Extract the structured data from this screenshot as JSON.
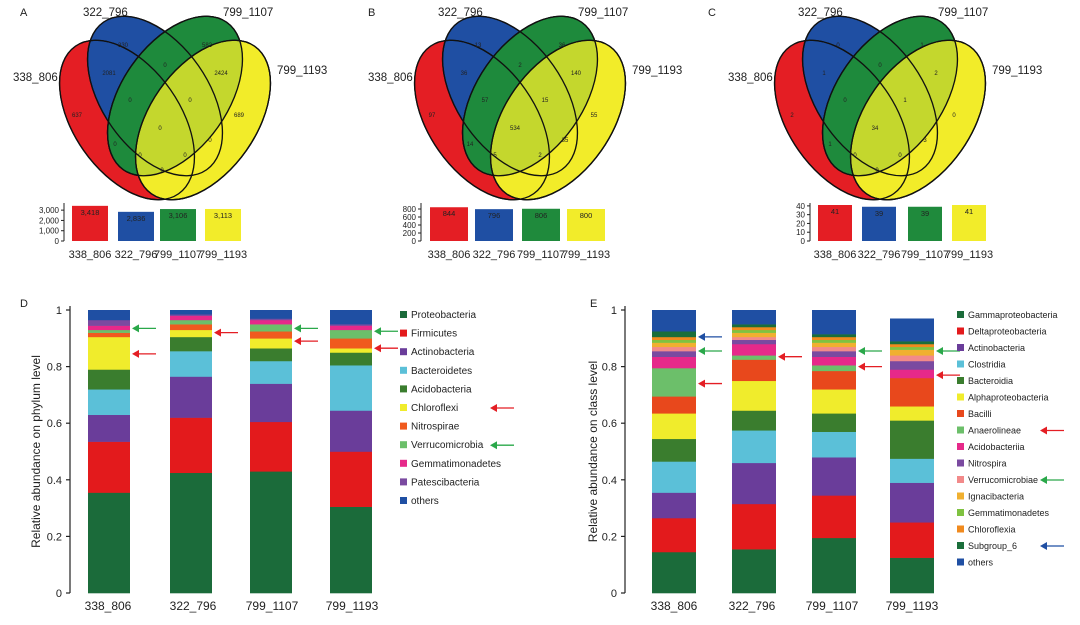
{
  "groups": [
    "338_806",
    "322_796",
    "799_1107",
    "799_1193"
  ],
  "colors": {
    "set_338_806": "#e41e24",
    "set_322_796": "#1f4fa3",
    "set_799_1107": "#1f8a3c",
    "set_799_1193": "#f2ec2a",
    "green_arrow": "#2aa84a",
    "red_arrow": "#e41e24",
    "blue_arrow": "#1f4fa3"
  },
  "panel_letters": {
    "a": "A",
    "b": "B",
    "c": "C",
    "d": "D",
    "e": "E"
  },
  "chart_data": [
    {
      "panel": "A",
      "type": "venn",
      "sets": [
        "338_806",
        "322_796",
        "799_1107",
        "799_1193"
      ],
      "regions": {
        "only_322_796": "330",
        "only_799_1107": "582",
        "322_796_and_338_806": "2081",
        "center_top": "0",
        "799_1107_and_799_1193": "2424",
        "only_338_806": "637",
        "left_inner": "0",
        "right_inner": "0",
        "only_799_1193": "689",
        "center": "0",
        "left_low": "0",
        "right_low": "0",
        "bottom_left": "0",
        "bottom_right": "0",
        "bottom": "0"
      }
    },
    {
      "panel": "A",
      "type": "bar",
      "categories": [
        "338_806",
        "322_796",
        "799_1107",
        "799_1193"
      ],
      "values": [
        3418,
        2836,
        3106,
        3113
      ],
      "value_labels": [
        "3,418",
        "2,836",
        "3,106",
        "3,113"
      ],
      "yticks": [
        "3,000",
        "2,000",
        "1,000",
        "0"
      ],
      "ylim": [
        0,
        3500
      ]
    },
    {
      "panel": "B",
      "type": "venn",
      "sets": [
        "338_806",
        "322_796",
        "799_1107",
        "799_1193"
      ],
      "regions": {
        "only_322_796": "13",
        "only_799_1107": "36",
        "322_796_and_338_806": "36",
        "center_top": "2",
        "799_1107_and_799_1193": "140",
        "only_338_806": "97",
        "left_inner": "57",
        "right_inner": "15",
        "only_799_1193": "55",
        "center": "534",
        "left_low": "14",
        "right_low": "35",
        "bottom_left": "5",
        "bottom_right": "2",
        "bottom": ""
      }
    },
    {
      "panel": "B",
      "type": "bar",
      "categories": [
        "338_806",
        "322_796",
        "799_1107",
        "799_1193"
      ],
      "values": [
        844,
        796,
        806,
        800
      ],
      "value_labels": [
        "844",
        "796",
        "806",
        "800"
      ],
      "yticks": [
        "800",
        "600",
        "400",
        "200",
        "0"
      ],
      "ylim": [
        0,
        900
      ]
    },
    {
      "panel": "C",
      "type": "venn",
      "sets": [
        "338_806",
        "322_796",
        "799_1107",
        "799_1193"
      ],
      "regions": {
        "only_322_796": "0",
        "only_799_1107": "1",
        "322_796_and_338_806": "1",
        "center_top": "0",
        "799_1107_and_799_1193": "2",
        "only_338_806": "2",
        "left_inner": "0",
        "right_inner": "1",
        "only_799_1193": "0",
        "center": "34",
        "left_low": "1",
        "right_low": "3",
        "bottom_left": "0",
        "bottom_right": "0",
        "bottom": "0"
      }
    },
    {
      "panel": "C",
      "type": "bar",
      "categories": [
        "338_806",
        "322_796",
        "799_1107",
        "799_1193"
      ],
      "values": [
        41,
        39,
        39,
        41
      ],
      "value_labels": [
        "41",
        "39",
        "39",
        "41"
      ],
      "yticks": [
        "40",
        "30",
        "20",
        "10",
        "0"
      ],
      "ylim": [
        0,
        41
      ]
    },
    {
      "panel": "D",
      "type": "stacked_bar",
      "ylabel": "Relative abundance on phylum level",
      "categories": [
        "338_806",
        "322_796",
        "799_1107",
        "799_1193"
      ],
      "yticks": [
        "0",
        "0.2",
        "0.4",
        "0.6",
        "0.8",
        "1"
      ],
      "ylim": [
        0,
        1
      ],
      "series": [
        {
          "name": "Proteobacteria",
          "color": "#1b6b3a",
          "values": [
            0.355,
            0.425,
            0.43,
            0.305
          ]
        },
        {
          "name": "Firmicutes",
          "color": "#e31a1c",
          "values": [
            0.18,
            0.195,
            0.175,
            0.195
          ]
        },
        {
          "name": "Actinobacteria",
          "color": "#6a3d9a",
          "values": [
            0.095,
            0.145,
            0.135,
            0.145
          ]
        },
        {
          "name": "Bacteroidetes",
          "color": "#5bc0d8",
          "values": [
            0.09,
            0.09,
            0.08,
            0.16
          ]
        },
        {
          "name": "Acidobacteria",
          "color": "#3a7d2e",
          "values": [
            0.07,
            0.05,
            0.045,
            0.045
          ]
        },
        {
          "name": "Chloroflexi",
          "color": "#f0ec2c",
          "values": [
            0.115,
            0.025,
            0.035,
            0.015
          ]
        },
        {
          "name": "Nitrospirae",
          "color": "#f05a1e",
          "values": [
            0.015,
            0.02,
            0.025,
            0.035
          ]
        },
        {
          "name": "Verrucomicrobia",
          "color": "#6cbf6a",
          "values": [
            0.01,
            0.015,
            0.025,
            0.03
          ]
        },
        {
          "name": "Gemmatimonadetes",
          "color": "#e6298a",
          "values": [
            0.015,
            0.015,
            0.015,
            0.015
          ]
        },
        {
          "name": "Patescibacteria",
          "color": "#7a4aa0",
          "values": [
            0.02,
            0.005,
            0.005,
            0.005
          ]
        },
        {
          "name": "others",
          "color": "#1f4fa3",
          "values": [
            0.035,
            0.015,
            0.03,
            0.05
          ]
        }
      ],
      "arrows": [
        {
          "bar": 0,
          "y": 0.935,
          "color": "green"
        },
        {
          "bar": 0,
          "y": 0.845,
          "color": "red"
        },
        {
          "bar": 1,
          "y": 0.92,
          "color": "red"
        },
        {
          "bar": 2,
          "y": 0.935,
          "color": "green"
        },
        {
          "bar": 2,
          "y": 0.89,
          "color": "red"
        },
        {
          "bar": 3,
          "y": 0.925,
          "color": "green"
        },
        {
          "bar": 3,
          "y": 0.865,
          "color": "red"
        }
      ],
      "legend_arrows": [
        {
          "item": 5,
          "color": "red"
        },
        {
          "item": 7,
          "color": "green"
        }
      ]
    },
    {
      "panel": "E",
      "type": "stacked_bar",
      "ylabel": "Relative abundance on class level",
      "categories": [
        "338_806",
        "322_796",
        "799_1107",
        "799_1193"
      ],
      "yticks": [
        "0",
        "0.2",
        "0.4",
        "0.6",
        "0.8",
        "1"
      ],
      "ylim": [
        0,
        1
      ],
      "series": [
        {
          "name": "Gammaproteobacteria",
          "color": "#1b6b3a",
          "values": [
            0.145,
            0.155,
            0.195,
            0.125
          ]
        },
        {
          "name": "Deltaproteobacteria",
          "color": "#e31a1c",
          "values": [
            0.12,
            0.16,
            0.15,
            0.125
          ]
        },
        {
          "name": "Actinobacteria",
          "color": "#6a3d9a",
          "values": [
            0.09,
            0.145,
            0.135,
            0.14
          ]
        },
        {
          "name": "Clostridia",
          "color": "#5bc0d8",
          "values": [
            0.11,
            0.115,
            0.09,
            0.085
          ]
        },
        {
          "name": "Bacteroidia",
          "color": "#3a7d2e",
          "values": [
            0.08,
            0.07,
            0.065,
            0.135
          ]
        },
        {
          "name": "Alphaproteobacteria",
          "color": "#f0ec2c",
          "values": [
            0.09,
            0.105,
            0.085,
            0.05
          ]
        },
        {
          "name": "Bacilli",
          "color": "#e8481c",
          "values": [
            0.06,
            0.075,
            0.065,
            0.1
          ]
        },
        {
          "name": "Anaerolineae",
          "color": "#6cbf6a",
          "values": [
            0.1,
            0.015,
            0.02,
            0.0
          ]
        },
        {
          "name": "Acidobacteriia",
          "color": "#e6298a",
          "values": [
            0.04,
            0.04,
            0.03,
            0.03
          ]
        },
        {
          "name": "Nitrospira",
          "color": "#7a4aa0",
          "values": [
            0.02,
            0.015,
            0.02,
            0.03
          ]
        },
        {
          "name": "Verrucomicrobiae",
          "color": "#f28a8a",
          "values": [
            0.015,
            0.01,
            0.015,
            0.02
          ]
        },
        {
          "name": "Ignacibacteria",
          "color": "#f0b030",
          "values": [
            0.015,
            0.015,
            0.015,
            0.02
          ]
        },
        {
          "name": "Gemmatimonadetes",
          "color": "#7fc241",
          "values": [
            0.01,
            0.01,
            0.01,
            0.01
          ]
        },
        {
          "name": "Chloroflexia",
          "color": "#f08a1e",
          "values": [
            0.01,
            0.01,
            0.01,
            0.01
          ]
        },
        {
          "name": "Subgroup_6",
          "color": "#1a6e3a",
          "values": [
            0.02,
            0.01,
            0.01,
            0.01
          ]
        },
        {
          "name": "others",
          "color": "#1f4fa3",
          "values": [
            0.075,
            0.05,
            0.085,
            0.08
          ]
        }
      ],
      "arrows": [
        {
          "bar": 0,
          "y": 0.905,
          "color": "blue"
        },
        {
          "bar": 0,
          "y": 0.855,
          "color": "green"
        },
        {
          "bar": 0,
          "y": 0.74,
          "color": "red"
        },
        {
          "bar": 1,
          "y": 0.835,
          "color": "red"
        },
        {
          "bar": 2,
          "y": 0.855,
          "color": "green"
        },
        {
          "bar": 2,
          "y": 0.8,
          "color": "red"
        },
        {
          "bar": 3,
          "y": 0.855,
          "color": "green"
        },
        {
          "bar": 3,
          "y": 0.77,
          "color": "red"
        }
      ],
      "legend_arrows": [
        {
          "item": 7,
          "color": "red"
        },
        {
          "item": 10,
          "color": "green"
        },
        {
          "item": 14,
          "color": "blue"
        }
      ]
    }
  ]
}
